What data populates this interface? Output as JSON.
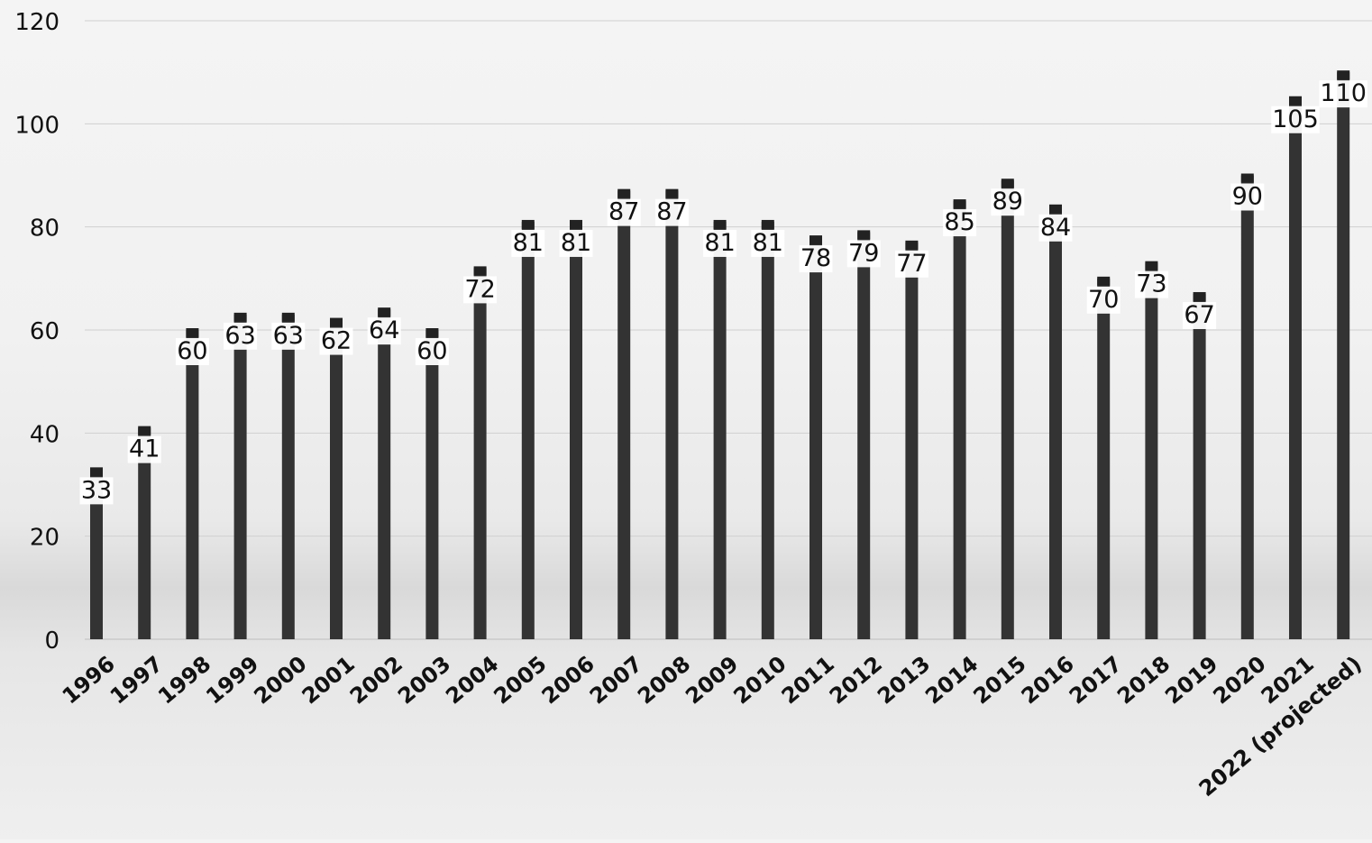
{
  "chart_data": {
    "type": "bar",
    "title": "",
    "xlabel": "",
    "ylabel": "",
    "categories": [
      "1996",
      "1997",
      "1998",
      "1999",
      "2000",
      "2001",
      "2002",
      "2003",
      "2004",
      "2005",
      "2006",
      "2007",
      "2008",
      "2009",
      "2010",
      "2011",
      "2012",
      "2013",
      "2014",
      "2015",
      "2016",
      "2017",
      "2018",
      "2019",
      "2020",
      "2021",
      "2022 (projected)"
    ],
    "values": [
      33,
      41,
      60,
      63,
      63,
      62,
      64,
      60,
      72,
      81,
      81,
      87,
      87,
      81,
      81,
      78,
      79,
      77,
      85,
      89,
      84,
      70,
      73,
      67,
      90,
      105,
      110
    ],
    "ylim": [
      0,
      120
    ],
    "yticks": [
      0,
      20,
      40,
      60,
      80,
      100,
      120
    ],
    "grid": true,
    "legend": "none",
    "colors": {
      "bar": "#333333",
      "bar_cap": "#222222",
      "grid": "#d0d0d0",
      "text": "#111111",
      "label_bg": "#ffffff"
    }
  }
}
